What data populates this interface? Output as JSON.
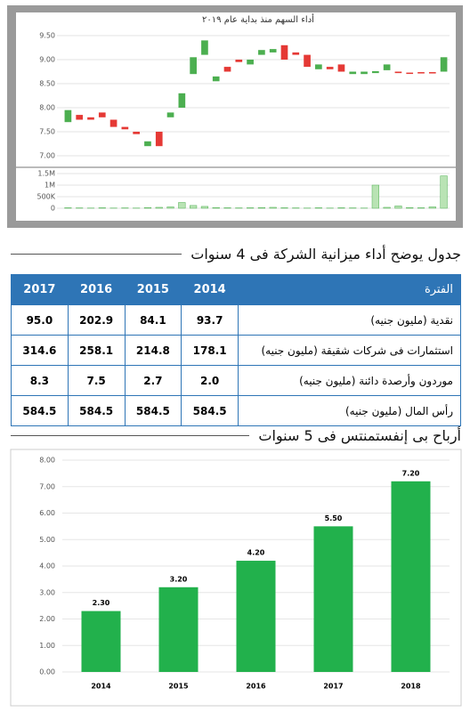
{
  "chart_data": [
    {
      "type": "candlestick",
      "title": "أداء السهم منذ بداية عام ٢٠١٩",
      "open": [
        7.7,
        7.85,
        7.8,
        7.9,
        7.75,
        7.6,
        7.5,
        7.2,
        7.5,
        7.8,
        8.0,
        8.7,
        9.1,
        8.55,
        8.85,
        9.0,
        8.9,
        9.1,
        9.15,
        9.3,
        9.15,
        9.1,
        8.8,
        8.85,
        8.9,
        8.7,
        8.7,
        8.72,
        8.78,
        8.75,
        8.73,
        8.74,
        8.74,
        8.75
      ],
      "close": [
        7.95,
        7.75,
        7.75,
        7.8,
        7.6,
        7.55,
        7.45,
        7.3,
        7.2,
        7.9,
        8.3,
        9.05,
        9.4,
        8.65,
        8.75,
        8.95,
        9.0,
        9.2,
        9.22,
        9.0,
        9.1,
        8.85,
        8.9,
        8.8,
        8.75,
        8.75,
        8.75,
        8.76,
        8.9,
        8.72,
        8.72,
        8.73,
        8.72,
        9.05
      ],
      "volume": [
        20000,
        15000,
        10000,
        20000,
        10000,
        15000,
        10000,
        30000,
        40000,
        60000,
        250000,
        120000,
        80000,
        30000,
        20000,
        15000,
        20000,
        30000,
        40000,
        20000,
        15000,
        10000,
        20000,
        10000,
        20000,
        15000,
        10000,
        1000000,
        40000,
        100000,
        30000,
        20000,
        60000,
        1400000
      ],
      "up_color": "#4caf50",
      "down_color": "#e53935",
      "volume_color": "#b9e3b4",
      "ylim": [
        7,
        9.5
      ],
      "yticks": [
        {
          "value": 7,
          "label": "7.00"
        },
        {
          "value": 7.5,
          "label": "7.50"
        },
        {
          "value": 8,
          "label": "8.00"
        },
        {
          "value": 8.5,
          "label": "8.50"
        },
        {
          "value": 9,
          "label": "9.00"
        },
        {
          "value": 9.5,
          "label": "9.50"
        }
      ],
      "y2lim": [
        0,
        1500000
      ],
      "y2ticks": [
        0,
        {
          "value": 500000,
          "label": "500K"
        },
        {
          "value": 1000000,
          "label": "1M"
        },
        {
          "value": 1500000,
          "label": "1.5M"
        }
      ],
      "grid": true
    },
    {
      "type": "bar",
      "title": "أرباح بى إنفستمنتس فى 5 سنوات",
      "categories": [
        "2014",
        "2015",
        "2016",
        "2017",
        "2018"
      ],
      "values": [
        2.3,
        3.2,
        4.2,
        5.5,
        7.2
      ],
      "value_labels": [
        "2.30",
        "3.20",
        "4.20",
        "5.50",
        "7.20"
      ],
      "color": "#22b14c",
      "ylim": [
        0,
        8
      ],
      "yticks": [
        {
          "value": 0,
          "label": "0.00"
        },
        {
          "value": 1,
          "label": "1.00"
        },
        {
          "value": 2,
          "label": "2.00"
        },
        {
          "value": 3,
          "label": "3.00"
        },
        {
          "value": 4,
          "label": "4.00"
        },
        {
          "value": 5,
          "label": "5.00"
        },
        {
          "value": 6,
          "label": "6.00"
        },
        {
          "value": 7,
          "label": "7.00"
        },
        {
          "value": 8,
          "label": "8.00"
        }
      ],
      "grid": true
    }
  ],
  "table": {
    "title": "جدول يوضح أداء ميزانية الشركة فى 4 سنوات",
    "header": [
      "الفترة",
      "2014",
      "2015",
      "2016",
      "2017"
    ],
    "rows": [
      [
        "نقدية (مليون جنيه)",
        "93.7",
        "84.1",
        "202.9",
        "95.0"
      ],
      [
        "استثمارات فى شركات شقيقة (مليون جنيه)",
        "178.1",
        "214.8",
        "258.1",
        "314.6"
      ],
      [
        "موردون وأرصدة دائنة (مليون جنيه)",
        "2.0",
        "2.7",
        "7.5",
        "8.3"
      ],
      [
        "رأس المال (مليون جنيه)",
        "584.5",
        "584.5",
        "584.5",
        "584.5"
      ]
    ]
  }
}
